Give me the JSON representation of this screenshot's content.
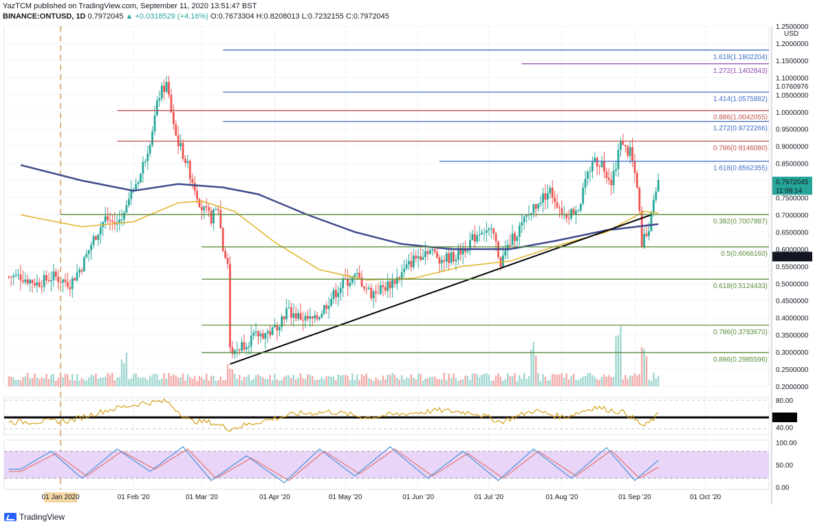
{
  "header": {
    "line1": "YazTCM published on TradingView.com, September 11, 2020 13:51:47 BST",
    "symbol": "BINANCE:ONTUSD, 1D",
    "price": "0.7972045",
    "change_icon": "up-triangle-icon",
    "change": "+0.0318529 (+4.16%)",
    "ohlc": "O:0.7673304 H:0.8208013 L:0.7232155 C:0.7972045"
  },
  "footer": {
    "brand": "TradingView",
    "logo_icon": "tradingview-logo-icon"
  },
  "colors": {
    "up": "#26a69a",
    "down": "#ef5350",
    "ma200": "#3f4a8c",
    "ma100": "#e0b224",
    "fib_blue": "#3d6cc7",
    "fib_red": "#c0504d",
    "fib_purple": "#8e44ad",
    "fib_green": "#5a8a3a",
    "rsi": "#d4a017",
    "stoch_k": "#4a90d9",
    "stoch_d": "#e57373",
    "stoch_bg": "#e8d5f7"
  },
  "chart_data": {
    "type": "candlestick",
    "title": "BINANCE:ONTUSD, 1D",
    "ylabel": "USD",
    "ylim": [
      0.2,
      1.25
    ],
    "price_ticks": [
      "1.2500000",
      "1.2000000",
      "1.1500000",
      "1.1000000",
      "1.0500000",
      "1.0000000",
      "0.9500000",
      "0.9000000",
      "0.8500000",
      "0.8000000",
      "0.7500000",
      "0.7000000",
      "0.6500000",
      "0.6000000",
      "0.5500000",
      "0.5000000",
      "0.4500000",
      "0.4000000",
      "0.3500000",
      "0.3000000",
      "0.2500000",
      "0.2000000"
    ],
    "x_ticks": [
      "01 Jan 2020",
      "01 Feb '20",
      "01 Mar '20",
      "01 Apr '20",
      "01 May '20",
      "01 Jun '20",
      "01 Jul '20",
      "01 Aug '20",
      "01 Sep '20",
      "01 Oct '20"
    ],
    "price_markers": [
      {
        "label": "1.0760976",
        "value": 1.0760976,
        "style": "plain"
      },
      {
        "label": "0.7972045",
        "value": 0.7972045,
        "style": "teal"
      },
      {
        "label": "11:08:14",
        "value": 0.7725,
        "style": "teal"
      },
      {
        "label": "0.5782272",
        "value": 0.5782272,
        "style": "dark"
      }
    ],
    "fib_levels": [
      {
        "label": "1.618(1.1802204)",
        "value": 1.1802204,
        "color": "blue",
        "from": "2020-03-10"
      },
      {
        "label": "1.272(1.1402843)",
        "value": 1.1402843,
        "color": "purple",
        "from": "2020-07-15"
      },
      {
        "label": "1.414(1.0575882)",
        "value": 1.0575882,
        "color": "blue",
        "from": "2020-03-10"
      },
      {
        "label": "0.886(1.0042055)",
        "value": 1.0042055,
        "color": "red",
        "from": "2020-01-25"
      },
      {
        "label": "1.272(0.9722266)",
        "value": 0.9722266,
        "color": "blue",
        "from": "2020-03-10"
      },
      {
        "label": "0.786(0.9146080)",
        "value": 0.914608,
        "color": "red",
        "from": "2020-01-25"
      },
      {
        "label": "1.618(0.8562355)",
        "value": 0.8562355,
        "color": "blue",
        "from": "2020-06-10"
      },
      {
        "label": "0.382(0.7007887)",
        "value": 0.7007887,
        "color": "green",
        "from": "2020-01-01"
      },
      {
        "label": "0.5(0.6066160)",
        "value": 0.606616,
        "color": "green",
        "from": "2020-03-01"
      },
      {
        "label": "0.618(0.5124433)",
        "value": 0.5124433,
        "color": "green",
        "from": "2020-03-01"
      },
      {
        "label": "0.786(0.3783670)",
        "value": 0.378367,
        "color": "green",
        "from": "2020-03-01"
      },
      {
        "label": "0.886(0.2985596)",
        "value": 0.2985596,
        "color": "green",
        "from": "2020-03-01"
      }
    ],
    "trendline": {
      "start": [
        "2020-03-13",
        0.265
      ],
      "end": [
        "2020-09-08",
        0.7
      ]
    },
    "closes": [
      [
        "2019-12-15",
        0.52
      ],
      [
        "2019-12-22",
        0.5
      ],
      [
        "2019-12-29",
        0.52
      ],
      [
        "2020-01-05",
        0.5
      ],
      [
        "2020-01-10",
        0.55
      ],
      [
        "2020-01-15",
        0.63
      ],
      [
        "2020-01-20",
        0.69
      ],
      [
        "2020-01-25",
        0.67
      ],
      [
        "2020-01-30",
        0.75
      ],
      [
        "2020-02-04",
        0.82
      ],
      [
        "2020-02-08",
        0.92
      ],
      [
        "2020-02-12",
        1.05
      ],
      [
        "2020-02-15",
        1.08
      ],
      [
        "2020-02-19",
        0.93
      ],
      [
        "2020-02-23",
        0.86
      ],
      [
        "2020-02-27",
        0.78
      ],
      [
        "2020-03-01",
        0.72
      ],
      [
        "2020-03-05",
        0.69
      ],
      [
        "2020-03-08",
        0.72
      ],
      [
        "2020-03-10",
        0.6
      ],
      [
        "2020-03-12",
        0.56
      ],
      [
        "2020-03-13",
        0.3
      ],
      [
        "2020-03-16",
        0.31
      ],
      [
        "2020-03-20",
        0.33
      ],
      [
        "2020-03-25",
        0.35
      ],
      [
        "2020-03-31",
        0.36
      ],
      [
        "2020-04-06",
        0.42
      ],
      [
        "2020-04-12",
        0.4
      ],
      [
        "2020-04-18",
        0.39
      ],
      [
        "2020-04-24",
        0.45
      ],
      [
        "2020-04-30",
        0.5
      ],
      [
        "2020-05-06",
        0.52
      ],
      [
        "2020-05-12",
        0.47
      ],
      [
        "2020-05-18",
        0.49
      ],
      [
        "2020-05-24",
        0.52
      ],
      [
        "2020-05-30",
        0.57
      ],
      [
        "2020-06-05",
        0.6
      ],
      [
        "2020-06-11",
        0.57
      ],
      [
        "2020-06-17",
        0.58
      ],
      [
        "2020-06-23",
        0.62
      ],
      [
        "2020-06-28",
        0.66
      ],
      [
        "2020-07-03",
        0.64
      ],
      [
        "2020-07-06",
        0.56
      ],
      [
        "2020-07-10",
        0.62
      ],
      [
        "2020-07-16",
        0.68
      ],
      [
        "2020-07-22",
        0.74
      ],
      [
        "2020-07-27",
        0.77
      ],
      [
        "2020-08-02",
        0.7
      ],
      [
        "2020-08-08",
        0.72
      ],
      [
        "2020-08-14",
        0.86
      ],
      [
        "2020-08-18",
        0.85
      ],
      [
        "2020-08-22",
        0.8
      ],
      [
        "2020-08-26",
        0.9
      ],
      [
        "2020-08-30",
        0.88
      ],
      [
        "2020-09-02",
        0.79
      ],
      [
        "2020-09-04",
        0.62
      ],
      [
        "2020-09-07",
        0.66
      ],
      [
        "2020-09-09",
        0.76
      ],
      [
        "2020-09-11",
        0.797
      ]
    ],
    "ma200": [
      [
        "2019-12-15",
        0.845
      ],
      [
        "2020-01-10",
        0.8
      ],
      [
        "2020-02-01",
        0.77
      ],
      [
        "2020-02-20",
        0.79
      ],
      [
        "2020-03-10",
        0.78
      ],
      [
        "2020-03-25",
        0.76
      ],
      [
        "2020-04-15",
        0.7
      ],
      [
        "2020-05-05",
        0.65
      ],
      [
        "2020-05-25",
        0.615
      ],
      [
        "2020-06-15",
        0.6
      ],
      [
        "2020-07-10",
        0.6
      ],
      [
        "2020-07-30",
        0.625
      ],
      [
        "2020-08-20",
        0.655
      ],
      [
        "2020-09-11",
        0.673
      ]
    ],
    "ma100": [
      [
        "2019-12-15",
        0.7
      ],
      [
        "2020-01-10",
        0.665
      ],
      [
        "2020-02-01",
        0.68
      ],
      [
        "2020-02-20",
        0.735
      ],
      [
        "2020-03-01",
        0.74
      ],
      [
        "2020-03-15",
        0.71
      ],
      [
        "2020-04-01",
        0.62
      ],
      [
        "2020-04-20",
        0.54
      ],
      [
        "2020-05-10",
        0.51
      ],
      [
        "2020-05-30",
        0.515
      ],
      [
        "2020-06-20",
        0.55
      ],
      [
        "2020-07-10",
        0.565
      ],
      [
        "2020-07-30",
        0.61
      ],
      [
        "2020-08-20",
        0.65
      ],
      [
        "2020-09-05",
        0.71
      ],
      [
        "2020-09-11",
        0.705
      ]
    ],
    "volume_peaks": [
      [
        "2020-01-28",
        0.5
      ],
      [
        "2020-03-13",
        0.35
      ],
      [
        "2020-07-20",
        0.7
      ],
      [
        "2020-08-25",
        0.95
      ],
      [
        "2020-09-05",
        0.6
      ]
    ],
    "rsi": {
      "ticks": [
        "80.00",
        "50.00",
        "40.00"
      ],
      "marker": "50.00",
      "values": [
        [
          "2019-12-15",
          42
        ],
        [
          "2020-01-05",
          44
        ],
        [
          "2020-01-20",
          62
        ],
        [
          "2020-02-05",
          75
        ],
        [
          "2020-02-15",
          78
        ],
        [
          "2020-02-25",
          44
        ],
        [
          "2020-03-05",
          41
        ],
        [
          "2020-03-13",
          30
        ],
        [
          "2020-03-25",
          42
        ],
        [
          "2020-04-10",
          56
        ],
        [
          "2020-04-25",
          60
        ],
        [
          "2020-05-10",
          50
        ],
        [
          "2020-05-25",
          56
        ],
        [
          "2020-06-10",
          62
        ],
        [
          "2020-06-25",
          58
        ],
        [
          "2020-07-06",
          42
        ],
        [
          "2020-07-20",
          62
        ],
        [
          "2020-08-02",
          50
        ],
        [
          "2020-08-15",
          68
        ],
        [
          "2020-08-28",
          58
        ],
        [
          "2020-09-05",
          34
        ],
        [
          "2020-09-11",
          54
        ]
      ]
    },
    "stoch": {
      "ticks": [
        "100.00",
        "50.00",
        "0.00"
      ],
      "band": [
        20,
        80
      ],
      "k": [
        [
          "2019-12-15",
          40
        ],
        [
          "2019-12-28",
          80
        ],
        [
          "2020-01-10",
          20
        ],
        [
          "2020-01-25",
          85
        ],
        [
          "2020-02-08",
          35
        ],
        [
          "2020-02-22",
          90
        ],
        [
          "2020-03-05",
          15
        ],
        [
          "2020-03-20",
          70
        ],
        [
          "2020-04-05",
          10
        ],
        [
          "2020-04-20",
          85
        ],
        [
          "2020-05-05",
          25
        ],
        [
          "2020-05-20",
          90
        ],
        [
          "2020-06-05",
          20
        ],
        [
          "2020-06-20",
          80
        ],
        [
          "2020-07-05",
          15
        ],
        [
          "2020-07-20",
          85
        ],
        [
          "2020-08-05",
          20
        ],
        [
          "2020-08-20",
          88
        ],
        [
          "2020-09-01",
          15
        ],
        [
          "2020-09-11",
          60
        ]
      ],
      "d": [
        [
          "2019-12-15",
          35
        ],
        [
          "2019-12-30",
          75
        ],
        [
          "2020-01-12",
          25
        ],
        [
          "2020-01-27",
          80
        ],
        [
          "2020-02-10",
          40
        ],
        [
          "2020-02-24",
          85
        ],
        [
          "2020-03-07",
          20
        ],
        [
          "2020-03-22",
          65
        ],
        [
          "2020-04-07",
          15
        ],
        [
          "2020-04-22",
          80
        ],
        [
          "2020-05-07",
          30
        ],
        [
          "2020-05-22",
          85
        ],
        [
          "2020-06-07",
          25
        ],
        [
          "2020-06-22",
          75
        ],
        [
          "2020-07-07",
          20
        ],
        [
          "2020-07-22",
          80
        ],
        [
          "2020-08-07",
          25
        ],
        [
          "2020-08-22",
          82
        ],
        [
          "2020-09-03",
          20
        ],
        [
          "2020-09-11",
          45
        ]
      ]
    }
  }
}
